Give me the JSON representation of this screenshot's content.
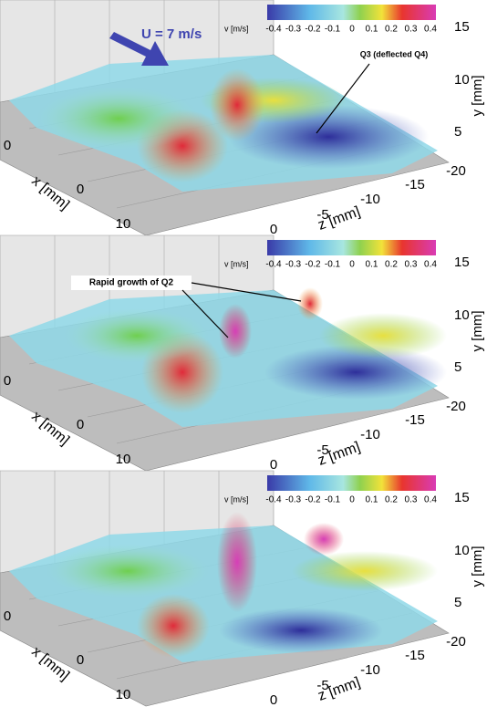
{
  "panels": [
    {
      "colorbar": {
        "label": "v [m/s]",
        "ticks": [
          "-0.4",
          "-0.3",
          "-0.2",
          "-0.1",
          "0",
          "0.1",
          "0.2",
          "0.3",
          "0.4"
        ]
      },
      "y_axis": {
        "label": "y [mm]",
        "ticks": [
          "15",
          "10",
          "5"
        ]
      },
      "x_axis": {
        "label": "x [mm]",
        "ticks": [
          "0",
          "0",
          "10"
        ]
      },
      "z_axis": {
        "label": "z [mm]",
        "ticks": [
          "0",
          "-5",
          "-10",
          "-15",
          "-20"
        ]
      },
      "annotations": [
        "U = 7 m/s",
        "Q3 (deflected Q4)"
      ]
    },
    {
      "colorbar": {
        "label": "v [m/s]",
        "ticks": [
          "-0.4",
          "-0.3",
          "-0.2",
          "-0.1",
          "0",
          "0.1",
          "0.2",
          "0.3",
          "0.4"
        ]
      },
      "y_axis": {
        "label": "y [mm]",
        "ticks": [
          "15",
          "10",
          "5"
        ]
      },
      "x_axis": {
        "label": "x [mm]",
        "ticks": [
          "0",
          "0",
          "10"
        ]
      },
      "z_axis": {
        "label": "z [mm]",
        "ticks": [
          "0",
          "-5",
          "-10",
          "-15",
          "-20"
        ]
      },
      "annotations": [
        "Rapid growth of Q2"
      ]
    },
    {
      "colorbar": {
        "label": "v [m/s]",
        "ticks": [
          "-0.4",
          "-0.3",
          "-0.2",
          "-0.1",
          "0",
          "0.1",
          "0.2",
          "0.3",
          "0.4"
        ]
      },
      "y_axis": {
        "label": "y [mm]",
        "ticks": [
          "15",
          "10",
          "5"
        ]
      },
      "x_axis": {
        "label": "x [mm]",
        "ticks": [
          "0",
          "0",
          "10"
        ]
      },
      "z_axis": {
        "label": "z [mm]",
        "ticks": [
          "0",
          "-5",
          "-10",
          "-15",
          "-20"
        ]
      },
      "annotations": []
    }
  ]
}
